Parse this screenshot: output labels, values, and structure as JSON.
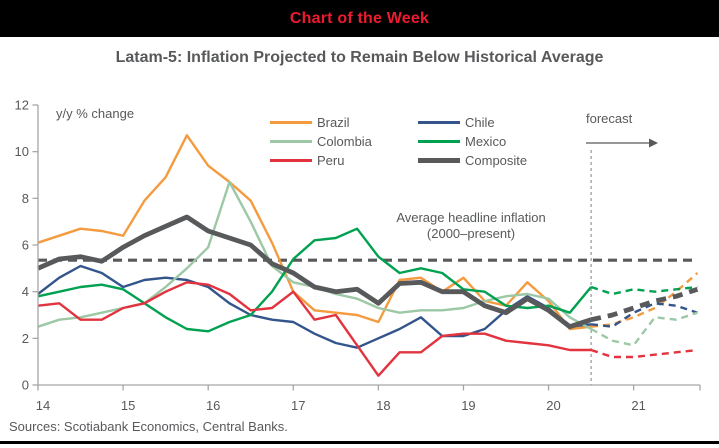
{
  "banner": {
    "title": "Chart of the Week",
    "bg_color": "#000000",
    "text_color": "#ED1B2F"
  },
  "title": "Latam-5: Inflation Projected to Remain Below Historical Average",
  "source": "Sources: Scotiabank Economics, Central Banks.",
  "colors": {
    "axis": "#A6A6A6",
    "text": "#58595B"
  },
  "chart_data": {
    "type": "line",
    "title": "Latam-5: Inflation Projected to Remain Below Historical Average",
    "ylabel_annotation": "y/y % change",
    "xlim": [
      14,
      21.78
    ],
    "ylim": [
      0,
      12
    ],
    "x_ticks": [
      14,
      15,
      16,
      17,
      18,
      19,
      20,
      21
    ],
    "y_ticks": [
      0,
      2,
      4,
      6,
      8,
      10,
      12
    ],
    "grid": false,
    "legend_position": "top-inside",
    "forecast_start_x": 20.5,
    "forecast_label": "forecast",
    "average_line": {
      "value": 5.35,
      "label_line1": "Average headline inflation",
      "label_line2": "(2000–present)"
    },
    "x": [
      14.0,
      14.25,
      14.5,
      14.75,
      15.0,
      15.25,
      15.5,
      15.75,
      16.0,
      16.25,
      16.5,
      16.75,
      17.0,
      17.25,
      17.5,
      17.75,
      18.0,
      18.25,
      18.5,
      18.75,
      19.0,
      19.25,
      19.5,
      19.75,
      20.0,
      20.25,
      20.5,
      20.75,
      21.0,
      21.25,
      21.5,
      21.75
    ],
    "series": [
      {
        "name": "Brazil",
        "color": "#F59B3F",
        "values": [
          6.1,
          6.4,
          6.7,
          6.6,
          6.4,
          7.9,
          8.9,
          10.7,
          9.4,
          8.7,
          7.9,
          6.1,
          4.0,
          3.2,
          3.1,
          3.0,
          2.7,
          4.5,
          4.6,
          4.0,
          4.6,
          3.6,
          3.4,
          4.4,
          3.6,
          2.4,
          2.5,
          2.6,
          2.9,
          3.3,
          4.0,
          4.8
        ]
      },
      {
        "name": "Chile",
        "color": "#33558C",
        "values": [
          3.9,
          4.6,
          5.1,
          4.8,
          4.2,
          4.5,
          4.6,
          4.5,
          4.2,
          3.5,
          3.0,
          2.8,
          2.7,
          2.2,
          1.8,
          1.6,
          2.0,
          2.4,
          2.9,
          2.1,
          2.1,
          2.4,
          3.2,
          3.8,
          3.3,
          2.5,
          2.6,
          2.5,
          3.1,
          3.5,
          3.4,
          3.1
        ]
      },
      {
        "name": "Colombia",
        "color": "#9CC8A5",
        "values": [
          2.5,
          2.8,
          2.9,
          3.1,
          3.3,
          3.5,
          4.2,
          5.0,
          5.9,
          8.7,
          7.0,
          5.1,
          4.4,
          4.2,
          3.9,
          3.7,
          3.3,
          3.1,
          3.2,
          3.2,
          3.3,
          3.6,
          3.8,
          3.9,
          3.7,
          2.9,
          2.4,
          1.9,
          1.7,
          2.9,
          2.8,
          3.1
        ]
      },
      {
        "name": "Mexico",
        "color": "#00A151",
        "values": [
          3.8,
          4.0,
          4.2,
          4.3,
          4.1,
          3.5,
          2.9,
          2.4,
          2.3,
          2.7,
          3.0,
          4.0,
          5.4,
          6.2,
          6.3,
          6.7,
          5.5,
          4.8,
          5.0,
          4.8,
          4.1,
          4.0,
          3.4,
          3.3,
          3.4,
          3.1,
          4.2,
          3.9,
          4.1,
          4.0,
          4.1,
          4.2
        ]
      },
      {
        "name": "Peru",
        "color": "#E2333F",
        "values": [
          3.4,
          3.5,
          2.8,
          2.8,
          3.3,
          3.5,
          4.0,
          4.4,
          4.3,
          3.9,
          3.2,
          3.3,
          4.0,
          2.8,
          3.0,
          1.7,
          0.4,
          1.4,
          1.4,
          2.1,
          2.2,
          2.2,
          1.9,
          1.8,
          1.7,
          1.5,
          1.5,
          1.2,
          1.2,
          1.3,
          1.4,
          1.5
        ]
      },
      {
        "name": "Composite",
        "color": "#58595B",
        "values": [
          5.0,
          5.4,
          5.5,
          5.3,
          5.9,
          6.4,
          6.8,
          7.2,
          6.6,
          6.3,
          6.0,
          5.2,
          4.8,
          4.2,
          4.0,
          4.1,
          3.5,
          4.35,
          4.4,
          4.0,
          4.0,
          3.4,
          3.1,
          3.7,
          3.2,
          2.5,
          2.8,
          3.0,
          3.3,
          3.6,
          3.8,
          4.1
        ]
      }
    ],
    "legend": {
      "left_column": [
        "Brazil",
        "Colombia",
        "Peru"
      ],
      "right_column": [
        "Chile",
        "Mexico",
        "Composite"
      ]
    }
  }
}
